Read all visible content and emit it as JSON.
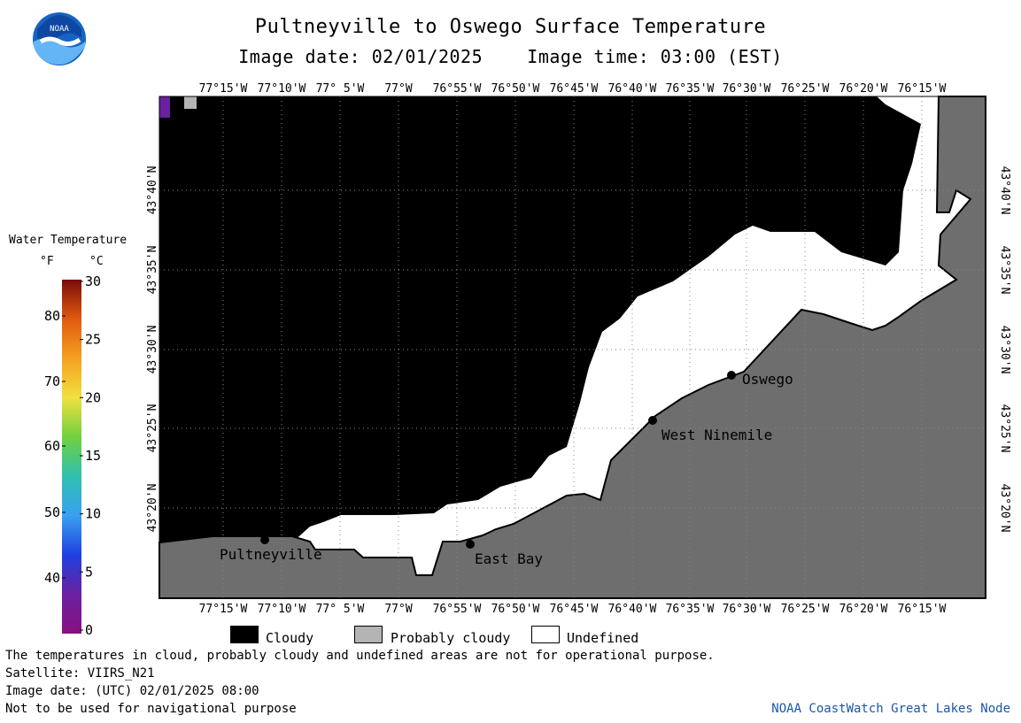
{
  "header": {
    "title": "Pultneyville to Oswego Surface Temperature",
    "subtitle": "Image date: 02/01/2025    Image time: 03:00 (EST)",
    "logo_text": "NOAA"
  },
  "legend": {
    "title": "Water Temperature",
    "unit_f": "°F",
    "unit_c": "°C",
    "fahrenheit_ticks": [
      "80",
      "70",
      "60",
      "50",
      "40"
    ],
    "celsius_ticks": [
      "30",
      "25",
      "20",
      "15",
      "10",
      "5",
      "0"
    ],
    "colors": [
      "#7a0a0a",
      "#e05a10",
      "#f5a020",
      "#f0e040",
      "#70d040",
      "#30c0b0",
      "#3aa0f0",
      "#2040e0",
      "#6a20a0",
      "#8a1080"
    ]
  },
  "map": {
    "lon_labels": [
      "77°15'W",
      "77°10'W",
      "77° 5'W",
      "77°W",
      "76°55'W",
      "76°50'W",
      "76°45'W",
      "76°40'W",
      "76°35'W",
      "76°30'W",
      "76°25'W",
      "76°20'W",
      "76°15'W"
    ],
    "lat_labels": [
      "43°40'N",
      "43°35'N",
      "43°30'N",
      "43°25'N",
      "43°20'N"
    ],
    "places": [
      {
        "name": "Pultneyville"
      },
      {
        "name": "East Bay"
      },
      {
        "name": "West Ninemile"
      },
      {
        "name": "Oswego"
      }
    ],
    "colors": {
      "cloud": "#000000",
      "probably_cloudy": "#b4b4b4",
      "undefined": "#ffffff",
      "land": "#6e6e6e"
    }
  },
  "key": {
    "cloudy": "Cloudy",
    "probably_cloudy": "Probably cloudy",
    "undefined": "Undefined"
  },
  "footer": {
    "disclaimer": "The temperatures in cloud, probably cloudy and undefined areas are not for operational purpose.",
    "satellite": "Satellite: VIIRS_N21",
    "image_date_utc": "Image date: (UTC) 02/01/2025  08:00",
    "nav_warning": "Not to be used for navigational purpose",
    "credit": "NOAA CoastWatch Great Lakes Node"
  }
}
